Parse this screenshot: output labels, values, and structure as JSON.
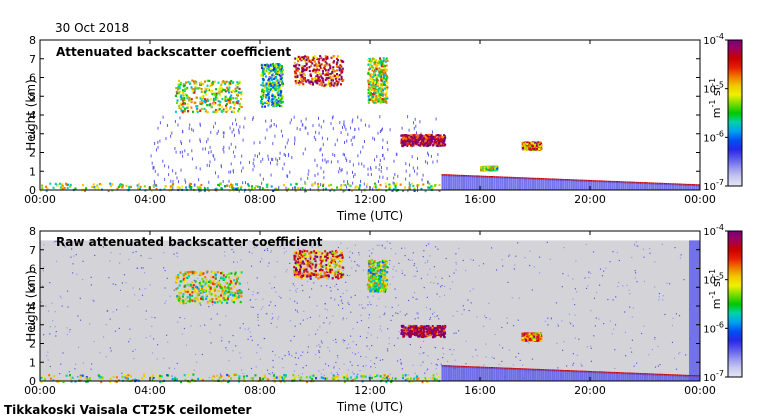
{
  "date": "30 Oct 2018",
  "footer": "Tikkakoski Vaisala CT25K ceilometer",
  "colorbar": {
    "tick_labels": [
      {
        "base": "10",
        "exp": "-4"
      },
      {
        "base": "10",
        "exp": "-5"
      },
      {
        "base": "10",
        "exp": "-6"
      },
      {
        "base": "10",
        "exp": "-7"
      }
    ],
    "label_m": "m",
    "label_m_exp": "-1",
    "label_sr": " sr",
    "label_sr_exp": "-1",
    "colors": [
      "#e6e6f5",
      "#c8c8f0",
      "#9696f0",
      "#5a5aeb",
      "#2828e6",
      "#0050f0",
      "#00a0f0",
      "#00d2aa",
      "#00c800",
      "#78dc00",
      "#f0f000",
      "#f0c800",
      "#f07800",
      "#e61e00",
      "#c80000",
      "#a0005a",
      "#780078"
    ]
  },
  "chart_data": [
    {
      "type": "heatmap",
      "title": "Attenuated backscatter coefficient",
      "xlabel": "Time (UTC)",
      "ylabel": "Height (km)",
      "x_ticks": [
        "00:00",
        "04:00",
        "08:00",
        "12:00",
        "16:00",
        "20:00",
        "00:00"
      ],
      "y_ticks": [
        "0",
        "1",
        "2",
        "3",
        "4",
        "5",
        "6",
        "7",
        "8"
      ],
      "xlim_hours": [
        0,
        24
      ],
      "ylim_km": [
        0,
        8
      ],
      "color_scale": "log",
      "color_range": [
        1e-07,
        0.0001
      ],
      "features": [
        {
          "kind": "cloud",
          "t_start_h": 4.9,
          "t_end_h": 7.3,
          "h_low_km": 4.2,
          "h_high_km": 5.9,
          "intensity": 0.6
        },
        {
          "kind": "cloud",
          "t_start_h": 8.0,
          "t_end_h": 8.8,
          "h_low_km": 4.5,
          "h_high_km": 6.8,
          "intensity": 0.45
        },
        {
          "kind": "cloud",
          "t_start_h": 9.2,
          "t_end_h": 11.0,
          "h_low_km": 5.6,
          "h_high_km": 7.2,
          "intensity": 0.85
        },
        {
          "kind": "cloud",
          "t_start_h": 11.9,
          "t_end_h": 12.6,
          "h_low_km": 4.7,
          "h_high_km": 7.1,
          "intensity": 0.6
        },
        {
          "kind": "cloud",
          "t_start_h": 13.1,
          "t_end_h": 14.7,
          "h_low_km": 2.4,
          "h_high_km": 3.0,
          "intensity": 0.95
        },
        {
          "kind": "cloud",
          "t_start_h": 17.5,
          "t_end_h": 18.2,
          "h_low_km": 2.2,
          "h_high_km": 2.6,
          "intensity": 0.75
        },
        {
          "kind": "cloud",
          "t_start_h": 16.0,
          "t_end_h": 16.6,
          "h_low_km": 1.1,
          "h_high_km": 1.3,
          "intensity": 0.55
        },
        {
          "kind": "boundary_layer",
          "t_start_h": 0,
          "t_end_h": 14.5,
          "h_low_km": 0.0,
          "h_high_km": 0.4,
          "intensity": 0.55
        },
        {
          "kind": "cloud_base",
          "t_start_h": 14.6,
          "t_end_h": 24,
          "h_start_km": 0.8,
          "h_end_km": 0.25,
          "intensity": 0.9
        }
      ]
    },
    {
      "type": "heatmap",
      "title": "Raw attenuated backscatter coefficient",
      "xlabel": "Time (UTC)",
      "ylabel": "Height (km)",
      "x_ticks": [
        "00:00",
        "04:00",
        "08:00",
        "12:00",
        "16:00",
        "20:00",
        "00:00"
      ],
      "y_ticks": [
        "0",
        "1",
        "2",
        "3",
        "4",
        "5",
        "6",
        "7",
        "8"
      ],
      "xlim_hours": [
        0,
        24
      ],
      "ylim_km": [
        0,
        8
      ],
      "color_scale": "log",
      "color_range": [
        1e-07,
        0.0001
      ],
      "noise_ceiling_km": 7.5,
      "features": [
        {
          "kind": "cloud",
          "t_start_h": 4.9,
          "t_end_h": 7.3,
          "h_low_km": 4.2,
          "h_high_km": 5.9,
          "intensity": 0.6
        },
        {
          "kind": "cloud",
          "t_start_h": 9.2,
          "t_end_h": 11.0,
          "h_low_km": 5.5,
          "h_high_km": 7.0,
          "intensity": 0.8
        },
        {
          "kind": "cloud",
          "t_start_h": 11.9,
          "t_end_h": 12.6,
          "h_low_km": 4.8,
          "h_high_km": 6.5,
          "intensity": 0.55
        },
        {
          "kind": "cloud",
          "t_start_h": 13.1,
          "t_end_h": 14.7,
          "h_low_km": 2.4,
          "h_high_km": 3.0,
          "intensity": 0.95
        },
        {
          "kind": "cloud",
          "t_start_h": 17.5,
          "t_end_h": 18.2,
          "h_low_km": 2.2,
          "h_high_km": 2.6,
          "intensity": 0.75
        },
        {
          "kind": "boundary_layer",
          "t_start_h": 0,
          "t_end_h": 14.5,
          "h_low_km": 0.0,
          "h_high_km": 0.4,
          "intensity": 0.55
        },
        {
          "kind": "cloud_base",
          "t_start_h": 14.6,
          "t_end_h": 24,
          "h_start_km": 0.8,
          "h_end_km": 0.25,
          "intensity": 0.9
        }
      ]
    }
  ]
}
